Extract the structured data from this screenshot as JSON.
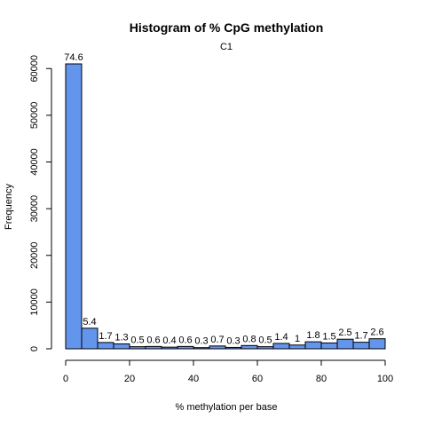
{
  "chart_data": {
    "type": "bar",
    "title": "Histogram of % CpG methylation",
    "subtitle": "C1",
    "xlabel": "% methylation per base",
    "ylabel": "Frequency",
    "bar_color": "#6495ED",
    "bin_edges": [
      0,
      5,
      10,
      15,
      20,
      25,
      30,
      35,
      40,
      45,
      50,
      55,
      60,
      65,
      70,
      75,
      80,
      85,
      90,
      95,
      100
    ],
    "values": [
      61000,
      4400,
      1350,
      1050,
      450,
      500,
      350,
      500,
      250,
      600,
      300,
      700,
      450,
      1150,
      800,
      1500,
      1250,
      2050,
      1400,
      2150
    ],
    "data_labels": [
      "74.6",
      "5.4",
      "1.7",
      "1.3",
      "0.5",
      "0.6",
      "0.4",
      "0.6",
      "0.3",
      "0.7",
      "0.3",
      "0.8",
      "0.5",
      "1.4",
      "1",
      "1.8",
      "1.5",
      "2.5",
      "1.7",
      "2.6"
    ],
    "xlim": [
      0,
      100
    ],
    "ylim": [
      0,
      61000
    ],
    "x_ticks": [
      0,
      20,
      40,
      60,
      80,
      100
    ],
    "y_ticks": [
      0,
      10000,
      20000,
      30000,
      40000,
      50000,
      60000
    ],
    "grid": false,
    "legend": "none"
  }
}
